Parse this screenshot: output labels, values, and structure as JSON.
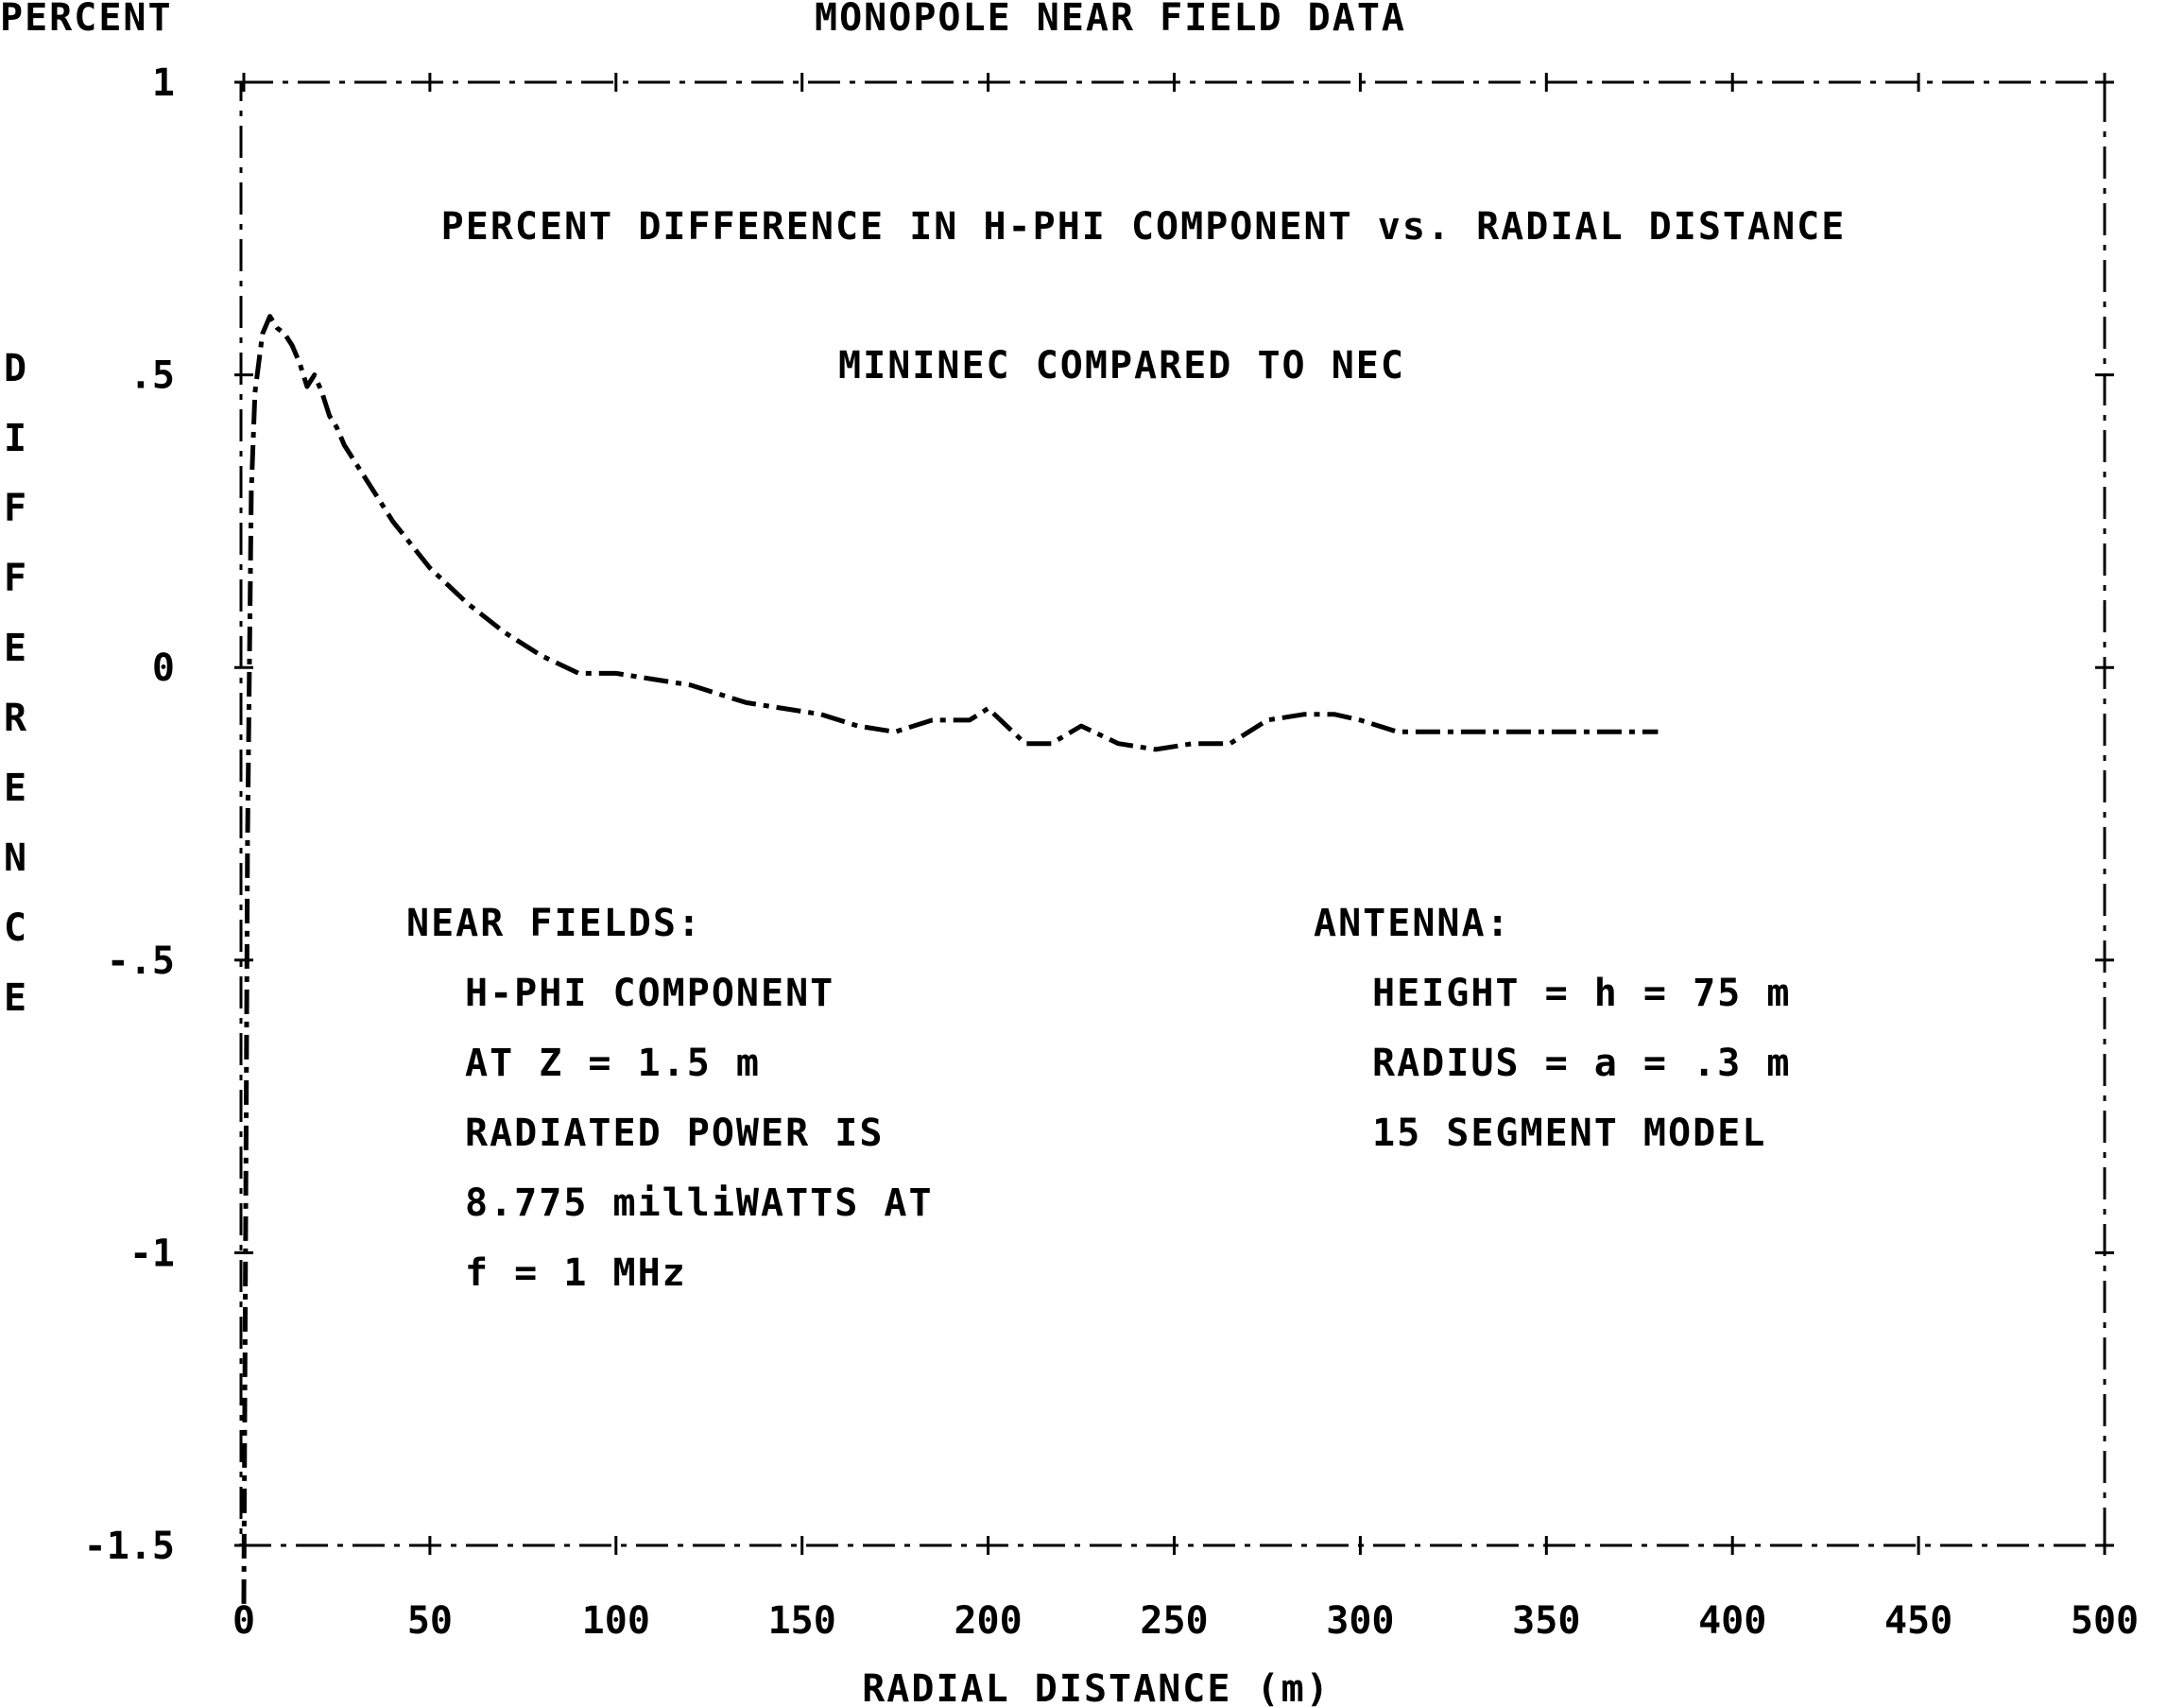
{
  "chart_data": {
    "type": "line",
    "header_left": "PERCENT",
    "header_title": "MONOPOLE NEAR FIELD DATA",
    "title": "PERCENT DIFFERENCE IN H-PHI COMPONENT vs. RADIAL DISTANCE",
    "subtitle": "MININEC COMPARED TO NEC",
    "xlabel": "RADIAL DISTANCE (m)",
    "ylabel": "DIFFERENCE",
    "xlim": [
      0,
      500
    ],
    "ylim": [
      -1.5,
      1
    ],
    "x_ticks": [
      0,
      50,
      100,
      150,
      200,
      250,
      300,
      350,
      400,
      450,
      500
    ],
    "x_tick_labels": [
      "0",
      "50",
      "100",
      "150",
      "200",
      "250",
      "300",
      "350",
      "400",
      "450",
      "500"
    ],
    "y_ticks": [
      1,
      0.5,
      0,
      -0.5,
      -1,
      -1.5
    ],
    "y_tick_labels": [
      "1",
      ".5",
      "0",
      "-.5",
      "-1",
      "-1.5"
    ],
    "grid": false,
    "series": [
      {
        "x": [
          0,
          1,
          2,
          3,
          5,
          7,
          9,
          11,
          13,
          15,
          17,
          19,
          21,
          23,
          25,
          27,
          30,
          33,
          36,
          40,
          45,
          50,
          55,
          60,
          70,
          80,
          90,
          100,
          110,
          120,
          135,
          145,
          155,
          165,
          175,
          185,
          195,
          200,
          210,
          217,
          225,
          235,
          245,
          255,
          265,
          275,
          285,
          293,
          300,
          310,
          320,
          330,
          340,
          350,
          360,
          370,
          380
        ],
        "y": [
          -1.6,
          -0.3,
          0.3,
          0.47,
          0.57,
          0.6,
          0.58,
          0.57,
          0.55,
          0.52,
          0.48,
          0.5,
          0.47,
          0.43,
          0.41,
          0.38,
          0.35,
          0.32,
          0.29,
          0.25,
          0.21,
          0.17,
          0.14,
          0.11,
          0.06,
          0.02,
          -0.01,
          -0.01,
          -0.02,
          -0.03,
          -0.06,
          -0.07,
          -0.08,
          -0.1,
          -0.11,
          -0.09,
          -0.09,
          -0.07,
          -0.13,
          -0.13,
          -0.1,
          -0.13,
          -0.14,
          -0.13,
          -0.13,
          -0.09,
          -0.08,
          -0.08,
          -0.09,
          -0.11,
          -0.11,
          -0.11,
          -0.11,
          -0.11,
          -0.11,
          -0.11,
          -0.11
        ]
      }
    ],
    "annotations_left": {
      "heading": "NEAR FIELDS:",
      "lines": [
        "H-PHI COMPONENT",
        "AT Z = 1.5 m",
        "RADIATED POWER IS",
        "8.775 milliWATTS AT",
        "f = 1 MHz"
      ]
    },
    "annotations_right": {
      "heading": "ANTENNA:",
      "lines": [
        "HEIGHT = h = 75 m",
        "RADIUS = a = .3 m",
        "15 SEGMENT MODEL"
      ]
    }
  }
}
